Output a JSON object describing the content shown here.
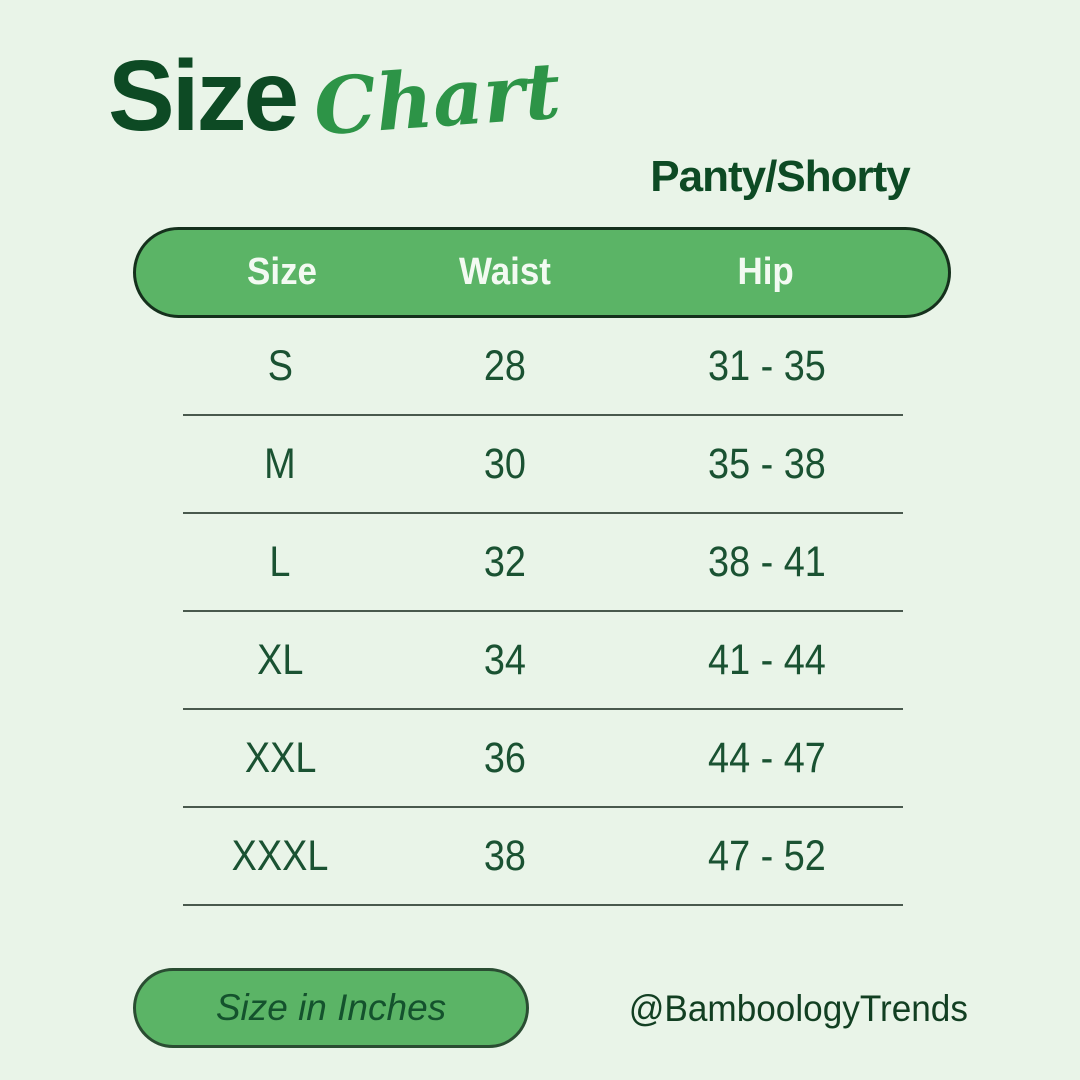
{
  "title": {
    "word_bold": "Size",
    "word_script": "Chart"
  },
  "product_label": "Panty/Shorty",
  "footer": {
    "unit_note": "Size in Inches",
    "brand_handle": "@BamboologyTrends"
  },
  "colors": {
    "background": "#e9f4e8",
    "pill_green": "#5bb466",
    "pill_border_dark": "#15301c",
    "title_dark_green": "#0d4a24",
    "script_green": "#2d9447",
    "table_text_green": "#1a5232",
    "header_text": "#f3faf2",
    "divider": "#49594d"
  },
  "chart_data": {
    "type": "table",
    "title": "Size Chart",
    "subtitle": "Panty/Shorty",
    "units": "inches",
    "columns": [
      "Size",
      "Waist",
      "Hip"
    ],
    "rows": [
      [
        "S",
        "28",
        "31 - 35"
      ],
      [
        "M",
        "30",
        "35 - 38"
      ],
      [
        "L",
        "32",
        "38 - 41"
      ],
      [
        "XL",
        "34",
        "41 - 44"
      ],
      [
        "XXL",
        "36",
        "44 - 47"
      ],
      [
        "XXXL",
        "38",
        "47 - 52"
      ]
    ]
  }
}
